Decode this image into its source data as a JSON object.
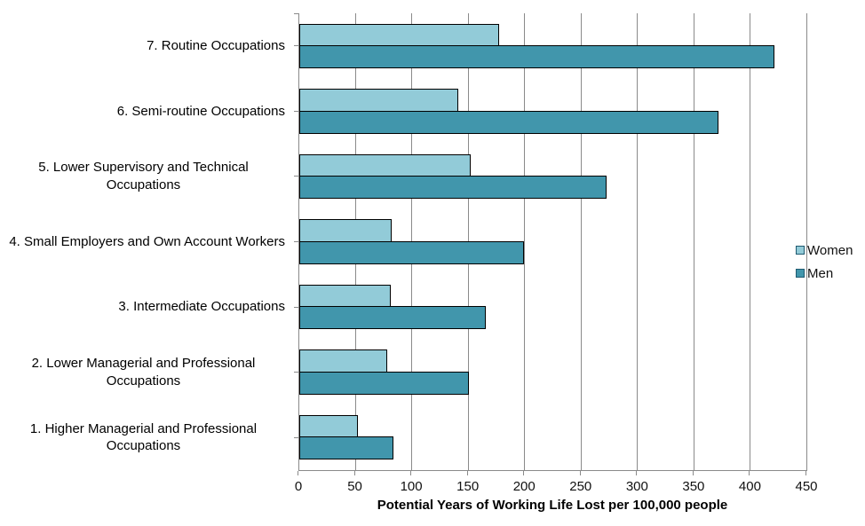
{
  "chart_data": {
    "type": "bar",
    "orientation": "horizontal",
    "title": "",
    "xlabel": "Potential Years of Working Life Lost per 100,000 people",
    "ylabel": "",
    "xlim": [
      0,
      450
    ],
    "xticks": [
      0,
      50,
      100,
      150,
      200,
      250,
      300,
      350,
      400,
      450
    ],
    "grid": true,
    "legend_position": "right",
    "categories": [
      "7. Routine Occupations",
      "6. Semi-routine Occupations",
      "5. Lower Supervisory and Technical Occupations",
      "4. Small Employers and Own Account Workers",
      "3. Intermediate Occupations",
      "2. Lower Managerial and Professional Occupations",
      "1. Higher Managerial and Professional Occupations"
    ],
    "series": [
      {
        "name": "Women",
        "color": "#92CBD8",
        "values": [
          177,
          141,
          152,
          82,
          81,
          78,
          52
        ]
      },
      {
        "name": "Men",
        "color": "#4196AC",
        "values": [
          421,
          371,
          272,
          199,
          165,
          150,
          83
        ]
      }
    ]
  },
  "colors": {
    "bar_border": "#000000",
    "gridline": "#8a8a8a",
    "axis_line": "#8a8a8a",
    "legend_swatch_border": "#1f5a70",
    "text": "#000000",
    "background": "#ffffff"
  }
}
